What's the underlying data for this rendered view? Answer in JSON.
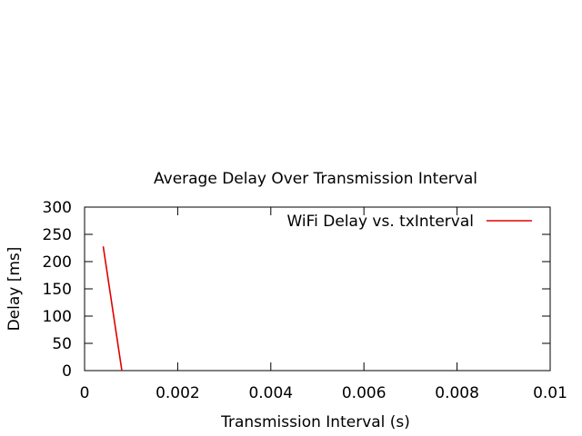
{
  "chart_data": {
    "type": "line",
    "title": "Average Delay Over Transmission Interval",
    "xlabel": "Transmission Interval (s)",
    "ylabel": "Delay [ms]",
    "xlim": [
      0,
      0.01
    ],
    "ylim": [
      0,
      300
    ],
    "xticks": [
      "0",
      "0.002",
      "0.004",
      "0.006",
      "0.008",
      "0.01"
    ],
    "yticks": [
      "0",
      "50",
      "100",
      "150",
      "200",
      "250",
      "300"
    ],
    "grid": false,
    "legend_position": "top-right",
    "series": [
      {
        "name": "WiFi Delay vs. txInterval",
        "color": "#e00000",
        "x": [
          0.0004,
          0.0008
        ],
        "y": [
          228,
          0
        ]
      }
    ]
  }
}
